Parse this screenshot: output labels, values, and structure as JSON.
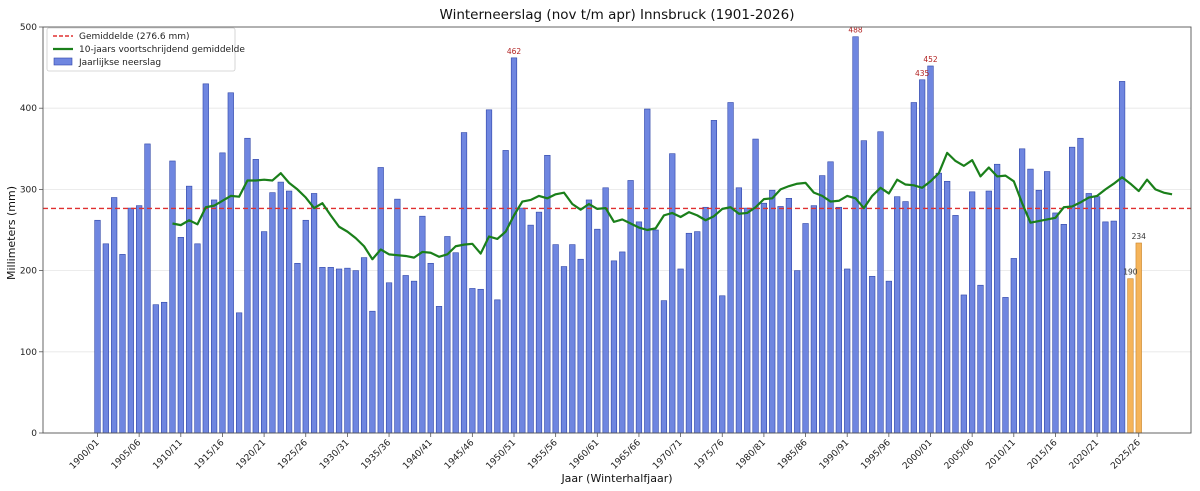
{
  "chart_data": {
    "type": "bar",
    "title": "Winterneerslag (nov t/m apr) Innsbruck (1901-2026)",
    "xlabel": "Jaar (Winterhalfjaar)",
    "ylabel": "Millimeters (mm)",
    "ylim": [
      0,
      500
    ],
    "yticks": [
      0,
      100,
      200,
      300,
      400,
      500
    ],
    "grid": true,
    "legend_position": "top-left",
    "legend": {
      "mean_label": "Gemiddelde (276.6 mm)",
      "moving_avg_label": "10-jaars voortschrijdend gemiddelde",
      "bars_label": "Jaarlijkse neerslag"
    },
    "mean_value": 276.6,
    "tick_labels": [
      "1900/01",
      "1905/06",
      "1910/11",
      "1915/16",
      "1920/21",
      "1925/26",
      "1930/31",
      "1935/36",
      "1940/41",
      "1945/46",
      "1950/51",
      "1955/56",
      "1960/61",
      "1965/66",
      "1970/71",
      "1975/76",
      "1980/81",
      "1985/86",
      "1990/91",
      "1995/96",
      "2000/01",
      "2005/06",
      "2010/11",
      "2015/16",
      "2020/21",
      "2025/26"
    ],
    "first_season_start": 1900,
    "values": [
      262,
      233,
      290,
      220,
      277,
      280,
      356,
      158,
      161,
      335,
      241,
      304,
      233,
      430,
      287,
      345,
      419,
      148,
      363,
      337,
      248,
      296,
      309,
      298,
      209,
      262,
      295,
      204,
      204,
      202,
      203,
      200,
      216,
      150,
      327,
      185,
      288,
      194,
      187,
      267,
      209,
      156,
      242,
      222,
      370,
      178,
      177,
      398,
      164,
      348,
      462,
      277,
      256,
      272,
      342,
      232,
      205,
      232,
      214,
      287,
      251,
      302,
      212,
      223,
      311,
      260,
      399,
      250,
      163,
      344,
      202,
      246,
      248,
      278,
      385,
      169,
      407,
      302,
      277,
      362,
      283,
      299,
      279,
      289,
      200,
      258,
      280,
      317,
      334,
      278,
      202,
      488,
      360,
      193,
      371,
      187,
      291,
      285,
      407,
      435,
      452,
      320,
      310,
      268,
      170,
      297,
      182,
      298,
      331,
      167,
      215,
      350,
      325,
      299,
      322,
      271,
      257,
      352,
      363,
      295,
      291,
      260,
      261,
      433
    ],
    "partial_values": [
      190,
      234
    ],
    "moving_average_start_index": 9,
    "moving_average": [
      258,
      256,
      262,
      257,
      278,
      280,
      286,
      292,
      291,
      311,
      311,
      312,
      311,
      320,
      308,
      300,
      290,
      277,
      283,
      268,
      254,
      248,
      240,
      230,
      214,
      226,
      220,
      219,
      218,
      216,
      223,
      222,
      217,
      220,
      230,
      232,
      233,
      221,
      242,
      239,
      248,
      268,
      285,
      287,
      292,
      289,
      294,
      296,
      282,
      275,
      282,
      276,
      277,
      260,
      263,
      258,
      253,
      250,
      252,
      268,
      271,
      266,
      272,
      268,
      262,
      267,
      276,
      278,
      270,
      271,
      278,
      288,
      289,
      300,
      304,
      307,
      308,
      296,
      292,
      285,
      286,
      292,
      289,
      277,
      292,
      302,
      295,
      312,
      306,
      305,
      302,
      310,
      320,
      345,
      335,
      329,
      336,
      316,
      327,
      316,
      317,
      310,
      283,
      259,
      261,
      263,
      265,
      278,
      279,
      284,
      290,
      292,
      300,
      307,
      315,
      307,
      298,
      312,
      300,
      296,
      294
    ]
  },
  "peak_labels": [
    {
      "index": 50,
      "text": "462",
      "color": "#b22222"
    },
    {
      "index": 91,
      "text": "488",
      "color": "#b22222"
    },
    {
      "index": 99,
      "text": "435",
      "color": "#b22222"
    },
    {
      "index": 100,
      "text": "452",
      "color": "#b22222"
    },
    {
      "index": 124,
      "text": "190",
      "color": "#333333"
    },
    {
      "index": 125,
      "text": "234",
      "color": "#333333"
    }
  ],
  "colors": {
    "bar_fill": "#6f86e0",
    "bar_edge": "#2f45a8",
    "partial_fill": "#f5b45a",
    "partial_edge": "#c8832a",
    "mean_line": "#e03030",
    "moving_avg": "#1a7f1a",
    "grid": "#e6e6e6",
    "axis": "#555555"
  }
}
